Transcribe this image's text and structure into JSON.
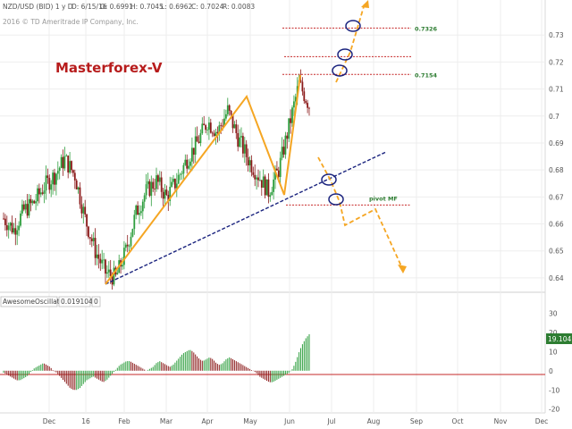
{
  "header": {
    "symbol": "NZD/USD (BID) 1 y D",
    "date": "D: 6/15/16",
    "open": "O: 0.6991",
    "high": "H: 0.7045",
    "low": "L: 0.6962",
    "close": "C: 0.7024",
    "range": "R: 0.0083",
    "copyright": "2016 © TD Ameritrade IP Company, Inc."
  },
  "watermark": "Masterforex-V",
  "oscillator": {
    "name": "AwesomeOscillator",
    "value": "0.0191041",
    "extra": "0",
    "badge": "19.1041",
    "ticks": [
      "30",
      "20",
      "10",
      "0",
      "-10",
      "-20"
    ]
  },
  "colors": {
    "up_candle": "#2e9e3e",
    "down_candle": "#8b1a1a",
    "orange": "#f5a623",
    "trendline": "#1a237e",
    "level_red": "#c62828",
    "level_text": "#2e7d32",
    "circle": "#1a237e",
    "badge": "#2e7d32"
  },
  "chart_data": {
    "type": "candlestick",
    "title": "",
    "xlabel": "",
    "ylabel": "",
    "ylim": [
      0.635,
      0.743
    ],
    "yticks": [
      0.64,
      0.65,
      0.66,
      0.67,
      0.68,
      0.69,
      0.7,
      0.71,
      0.72,
      0.73
    ],
    "ytick_labels": [
      "0.64",
      "0.65",
      "0.66",
      "0.67",
      "0.68",
      "0.69",
      "0.7",
      "0.71",
      "0.72",
      "0.73"
    ],
    "x_labels": [
      "Dec",
      "16",
      "Feb",
      "Mar",
      "Apr",
      "May",
      "Jun",
      "Jul",
      "Aug",
      "Sep",
      "Oct",
      "Nov",
      "Dec"
    ],
    "price_path": [
      [
        0,
        0.662
      ],
      [
        6,
        0.658
      ],
      [
        12,
        0.665
      ],
      [
        18,
        0.668
      ],
      [
        24,
        0.674
      ],
      [
        30,
        0.678
      ],
      [
        36,
        0.684
      ],
      [
        42,
        0.678
      ],
      [
        48,
        0.662
      ],
      [
        54,
        0.65
      ],
      [
        60,
        0.642
      ],
      [
        66,
        0.64
      ],
      [
        72,
        0.65
      ],
      [
        78,
        0.664
      ],
      [
        84,
        0.672
      ],
      [
        90,
        0.676
      ],
      [
        96,
        0.67
      ],
      [
        102,
        0.676
      ],
      [
        108,
        0.684
      ],
      [
        114,
        0.69
      ],
      [
        120,
        0.698
      ],
      [
        126,
        0.694
      ],
      [
        132,
        0.702
      ],
      [
        138,
        0.692
      ],
      [
        144,
        0.684
      ],
      [
        150,
        0.678
      ],
      [
        156,
        0.672
      ],
      [
        162,
        0.68
      ],
      [
        168,
        0.696
      ],
      [
        174,
        0.712
      ],
      [
        180,
        0.704
      ]
    ],
    "levels": [
      {
        "value": 0.7326,
        "label": "0.7326"
      },
      {
        "value": 0.722,
        "label": ""
      },
      {
        "value": 0.7154,
        "label": "0.7154"
      },
      {
        "value": 0.667,
        "label": "pivot MF"
      }
    ],
    "oscillator_ylim": [
      -22,
      33
    ],
    "oscillator_values": [
      -1,
      -2,
      -3,
      -4,
      -5,
      -5,
      -4,
      -3,
      -1,
      1,
      2,
      3,
      4,
      3,
      2,
      0,
      -1,
      -3,
      -5,
      -7,
      -9,
      -10,
      -10,
      -9,
      -7,
      -5,
      -4,
      -3,
      -4,
      -5,
      -6,
      -5,
      -3,
      -1,
      1,
      3,
      4,
      5,
      5,
      4,
      3,
      2,
      1,
      0,
      1,
      2,
      4,
      5,
      4,
      3,
      2,
      3,
      5,
      7,
      9,
      10,
      11,
      10,
      8,
      6,
      5,
      6,
      7,
      6,
      4,
      3,
      4,
      6,
      7,
      6,
      5,
      4,
      3,
      2,
      1,
      0,
      -1,
      -3,
      -4,
      -5,
      -6,
      -6,
      -5,
      -4,
      -3,
      -2,
      -1,
      1,
      5,
      10,
      14,
      17,
      19
    ]
  }
}
